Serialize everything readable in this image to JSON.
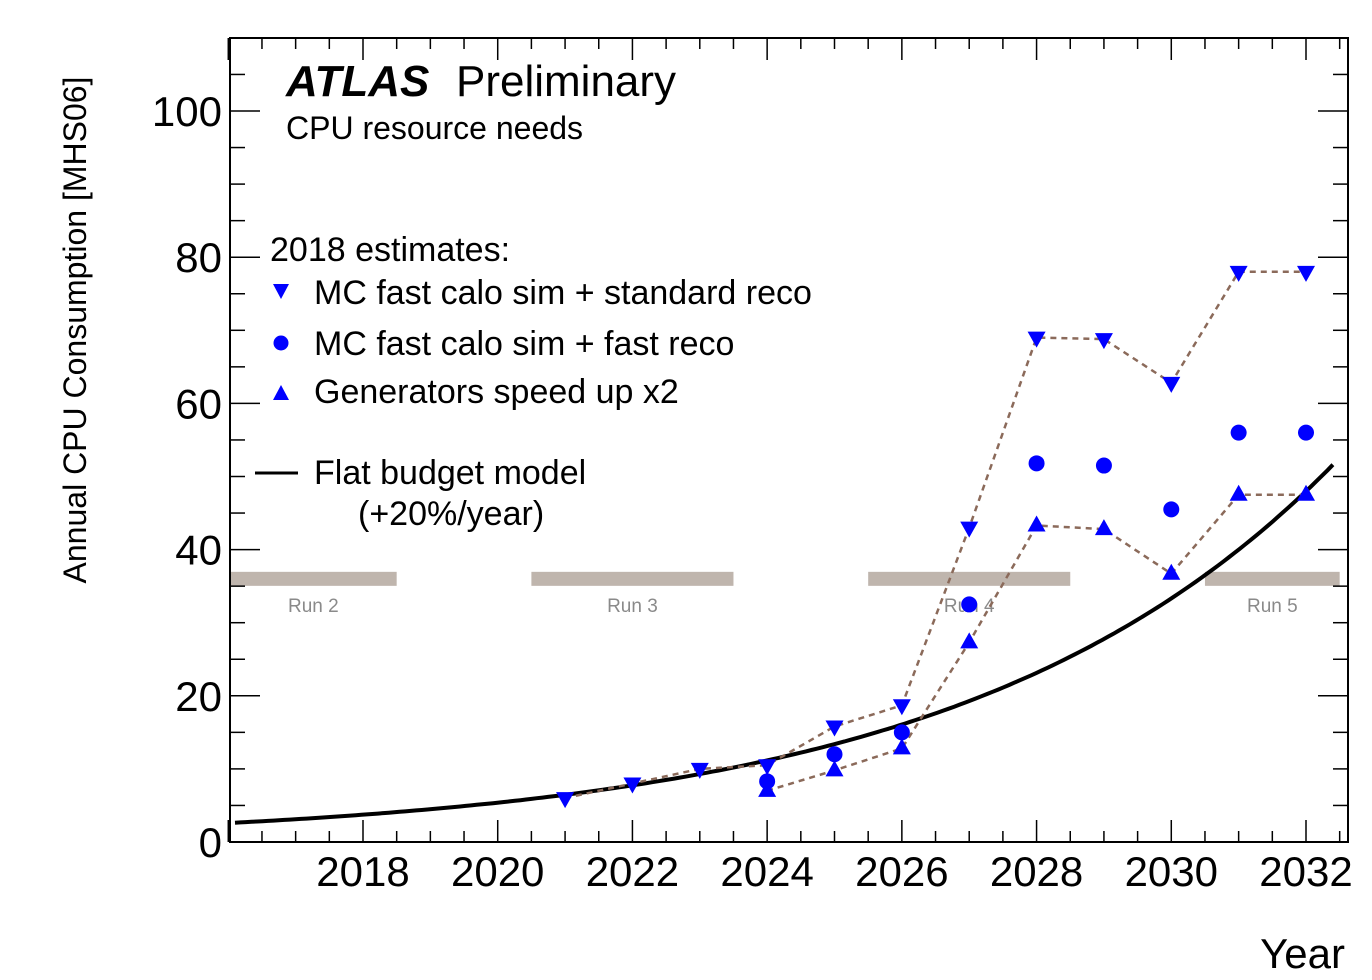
{
  "chart_data": {
    "type": "scatter",
    "experiment": "ATLAS",
    "status": "Preliminary",
    "subtitle": "CPU resource needs",
    "xlabel": "Year",
    "ylabel": "Annual CPU Consumption [MHS06]",
    "xlim": [
      2016,
      2032.5
    ],
    "ylim": [
      0,
      110
    ],
    "x_ticks": [
      2018,
      2020,
      2022,
      2024,
      2026,
      2028,
      2030,
      2032
    ],
    "y_ticks": [
      0,
      20,
      40,
      60,
      80,
      100
    ],
    "grid": false,
    "legend_header": "2018 estimates:",
    "legend_position": "top-left",
    "series": [
      {
        "name": "MC fast calo sim + standard reco",
        "marker": "triangle-down",
        "color": "#0000ff",
        "line_color": "#8b6a5a",
        "x": [
          2021,
          2022,
          2023,
          2024,
          2025,
          2026,
          2027,
          2028,
          2029,
          2030,
          2031,
          2032
        ],
        "y": [
          6.0,
          8.0,
          10.0,
          10.5,
          15.8,
          18.7,
          43.0,
          69.0,
          68.8,
          62.8,
          78.0,
          78.0
        ]
      },
      {
        "name": "MC fast calo sim + fast reco",
        "marker": "circle",
        "color": "#0000ff",
        "x": [
          2024,
          2025,
          2026,
          2027,
          2028,
          2029,
          2030,
          2031,
          2032
        ],
        "y": [
          8.3,
          12.0,
          15.0,
          32.5,
          51.8,
          51.5,
          45.5,
          56.0,
          56.0
        ]
      },
      {
        "name": "Generators speed up x2",
        "marker": "triangle-up",
        "color": "#0000ff",
        "line_color": "#8b6a5a",
        "x": [
          2024,
          2025,
          2026,
          2027,
          2028,
          2029,
          2030,
          2031,
          2032
        ],
        "y": [
          7.0,
          9.8,
          12.8,
          27.3,
          43.3,
          42.8,
          36.7,
          47.5,
          47.5
        ]
      }
    ],
    "budget_model": {
      "name": "Flat budget model",
      "name_line2": "(+20%/year)",
      "color": "#000000",
      "growth_rate": 0.2,
      "reference_year": 2022,
      "reference_value": 7.75,
      "x_range": [
        2016.1,
        2032.4
      ]
    },
    "runs": [
      {
        "label": "Run 2",
        "x_range": [
          2016,
          2018.5
        ]
      },
      {
        "label": "Run 3",
        "x_range": [
          2020.5,
          2023.5
        ]
      },
      {
        "label": "Run 4",
        "x_range": [
          2025.5,
          2028.5
        ]
      },
      {
        "label": "Run 5",
        "x_range": [
          2030.5,
          2032.5
        ]
      }
    ],
    "run_band_value": 36,
    "run_band_color": "#bfb5ad"
  }
}
